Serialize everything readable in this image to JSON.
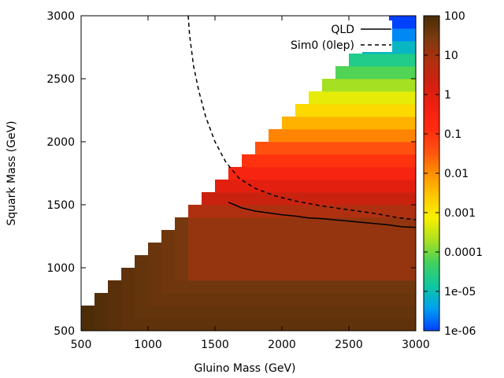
{
  "chart_data": {
    "type": "heatmap",
    "xlabel": "Gluino Mass (GeV)",
    "ylabel": "Squark Mass (GeV)",
    "xlim": [
      500,
      3000
    ],
    "ylim": [
      500,
      3000
    ],
    "x_ticks": [
      "500",
      "1000",
      "1500",
      "2000",
      "2500",
      "3000"
    ],
    "y_ticks": [
      "500",
      "1000",
      "1500",
      "2000",
      "2500",
      "3000"
    ],
    "colorbar": {
      "scale": "log",
      "range": [
        1e-06,
        100
      ],
      "ticks": [
        "100",
        "10",
        "1",
        "0.1",
        "0.01",
        "0.001",
        "0.0001",
        "1e-05",
        "1e-06"
      ],
      "palette": [
        "#0040ff",
        "#00a0f0",
        "#10c8a0",
        "#40d060",
        "#a8e020",
        "#f8f000",
        "#ffc800",
        "#ff9000",
        "#ff5010",
        "#ff2a10",
        "#f02010",
        "#d02010",
        "#b03010",
        "#7a3a10",
        "#4a2c08"
      ]
    },
    "grid_step": 100,
    "grid_region": "filled for gluino >= squark - 100 GeV (lower-right triangle), empty above diagonal",
    "legend_position": "top-right",
    "series": [
      {
        "name": "QLD",
        "style": "solid",
        "x": [
          1600,
          1700,
          1800,
          1900,
          2000,
          2100,
          2200,
          2300,
          2400,
          2500,
          2600,
          2700,
          2800,
          2900,
          3000
        ],
        "y": [
          1520,
          1475,
          1450,
          1435,
          1420,
          1410,
          1395,
          1390,
          1380,
          1370,
          1360,
          1350,
          1340,
          1325,
          1320
        ]
      },
      {
        "name": "Sim0 (0lep)",
        "style": "dashed",
        "x": [
          1300,
          1310,
          1340,
          1380,
          1430,
          1500,
          1580,
          1680,
          1800,
          1950,
          2100,
          2300,
          2500,
          2700,
          2850,
          3000
        ],
        "y": [
          3000,
          2850,
          2600,
          2400,
          2200,
          2000,
          1840,
          1710,
          1630,
          1570,
          1530,
          1490,
          1460,
          1430,
          1400,
          1380
        ]
      }
    ]
  }
}
